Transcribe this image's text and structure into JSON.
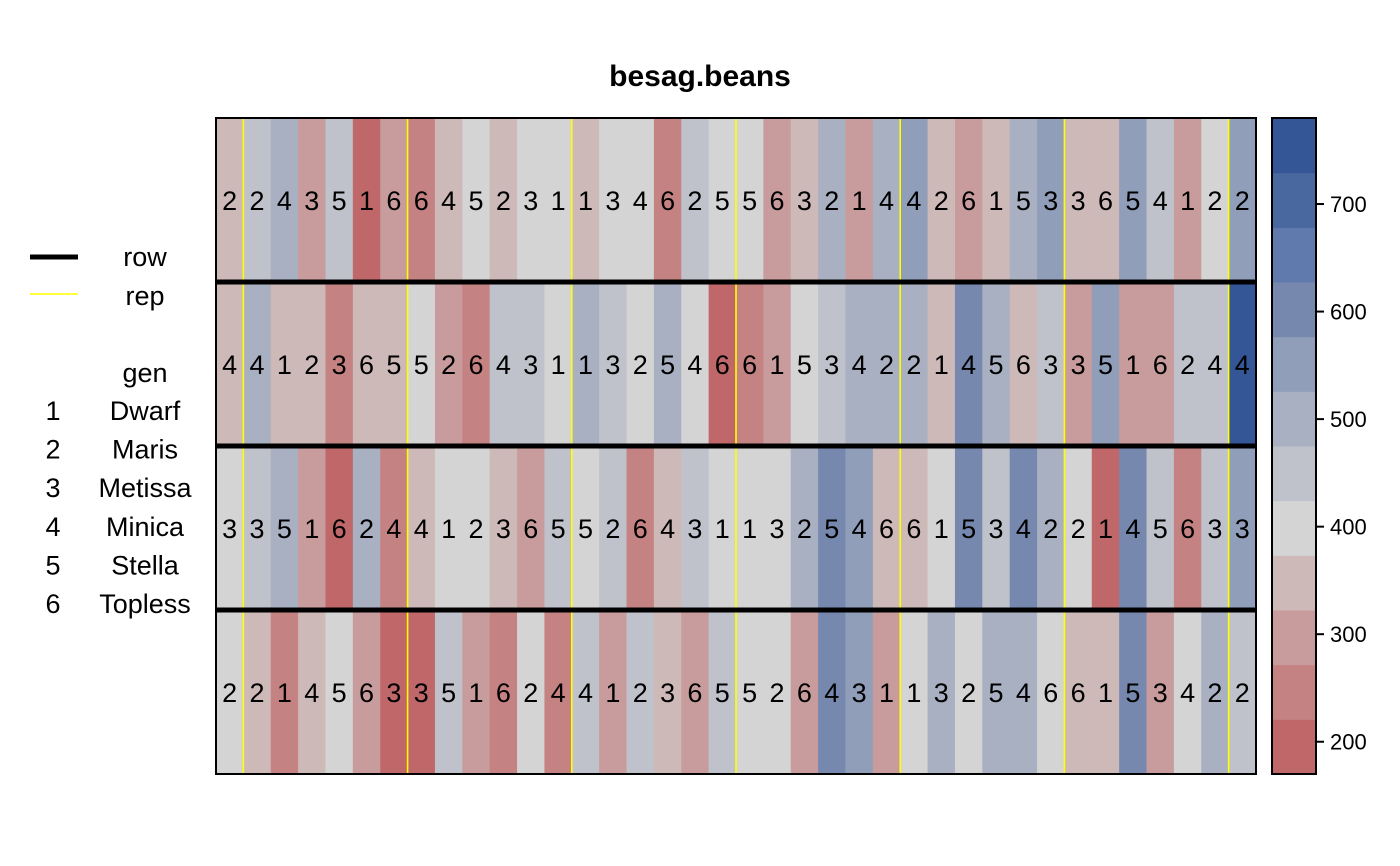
{
  "chart_data": {
    "type": "heatmap",
    "title": "besag.beans",
    "n_rows": 4,
    "n_cols": 38,
    "rep_boundaries_after_col": [
      1,
      7,
      13,
      19,
      25,
      31,
      37
    ],
    "genotype_labels": [
      [
        "2",
        "2",
        "4",
        "3",
        "5",
        "1",
        "6",
        "6",
        "4",
        "5",
        "2",
        "3",
        "1",
        "1",
        "3",
        "4",
        "6",
        "2",
        "5",
        "5",
        "6",
        "3",
        "2",
        "1",
        "4",
        "4",
        "2",
        "6",
        "1",
        "5",
        "3",
        "3",
        "6",
        "5",
        "4",
        "1",
        "2",
        "2"
      ],
      [
        "4",
        "4",
        "1",
        "2",
        "3",
        "6",
        "5",
        "5",
        "2",
        "6",
        "4",
        "3",
        "1",
        "1",
        "3",
        "2",
        "5",
        "4",
        "6",
        "6",
        "1",
        "5",
        "3",
        "4",
        "2",
        "2",
        "1",
        "4",
        "5",
        "6",
        "3",
        "3",
        "5",
        "1",
        "6",
        "2",
        "4",
        "4"
      ],
      [
        "3",
        "3",
        "5",
        "1",
        "6",
        "2",
        "4",
        "4",
        "1",
        "2",
        "3",
        "6",
        "5",
        "5",
        "2",
        "6",
        "4",
        "3",
        "1",
        "1",
        "3",
        "2",
        "5",
        "4",
        "6",
        "6",
        "1",
        "5",
        "3",
        "4",
        "2",
        "2",
        "1",
        "4",
        "5",
        "6",
        "3",
        "3"
      ],
      [
        "2",
        "2",
        "1",
        "4",
        "5",
        "6",
        "3",
        "3",
        "5",
        "1",
        "6",
        "2",
        "4",
        "4",
        "1",
        "2",
        "3",
        "6",
        "5",
        "5",
        "2",
        "6",
        "4",
        "3",
        "1",
        "1",
        "3",
        "2",
        "5",
        "4",
        "6",
        "6",
        "1",
        "5",
        "3",
        "4",
        "2",
        "2"
      ]
    ],
    "yield_values": [
      [
        330,
        450,
        520,
        290,
        440,
        200,
        280,
        260,
        330,
        400,
        330,
        400,
        400,
        330,
        400,
        400,
        250,
        440,
        400,
        380,
        300,
        330,
        520,
        300,
        520,
        550,
        330,
        280,
        330,
        480,
        550,
        330,
        330,
        550,
        440,
        280,
        400,
        560
      ],
      [
        330,
        500,
        330,
        330,
        230,
        330,
        330,
        400,
        300,
        230,
        440,
        440,
        400,
        500,
        440,
        400,
        500,
        400,
        210,
        250,
        300,
        400,
        440,
        500,
        500,
        500,
        330,
        620,
        500,
        330,
        440,
        300,
        550,
        300,
        300,
        440,
        440,
        760
      ],
      [
        400,
        450,
        500,
        280,
        220,
        500,
        260,
        330,
        400,
        400,
        330,
        300,
        440,
        400,
        440,
        260,
        330,
        440,
        400,
        400,
        400,
        500,
        580,
        550,
        330,
        330,
        400,
        580,
        440,
        580,
        500,
        400,
        200,
        600,
        440,
        260,
        450,
        550
      ],
      [
        400,
        330,
        250,
        330,
        400,
        300,
        220,
        220,
        440,
        300,
        260,
        400,
        250,
        440,
        300,
        440,
        330,
        300,
        440,
        400,
        400,
        280,
        580,
        550,
        300,
        400,
        500,
        400,
        500,
        500,
        400,
        330,
        330,
        580,
        300,
        400,
        500,
        440
      ]
    ],
    "color_scale": {
      "min": 170,
      "max": 780,
      "colors": [
        "#c0676a",
        "#c58282",
        "#c89c9c",
        "#ceb9b9",
        "#d4d4d4",
        "#bfc2cb",
        "#a8b0c1",
        "#909eba",
        "#7788af",
        "#607aad",
        "#4968a0",
        "#345596"
      ],
      "ticks": [
        200,
        300,
        400,
        500,
        600,
        700
      ]
    },
    "legend": {
      "line_items": [
        {
          "label": "row",
          "color": "#000000"
        },
        {
          "label": "rep",
          "color": "#ffff00"
        }
      ],
      "gen_title": "gen",
      "gen_items": [
        {
          "code": "1",
          "name": "Dwarf"
        },
        {
          "code": "2",
          "name": "Maris"
        },
        {
          "code": "3",
          "name": "Metissa"
        },
        {
          "code": "4",
          "name": "Minica"
        },
        {
          "code": "5",
          "name": "Stella"
        },
        {
          "code": "6",
          "name": "Topless"
        }
      ]
    }
  }
}
